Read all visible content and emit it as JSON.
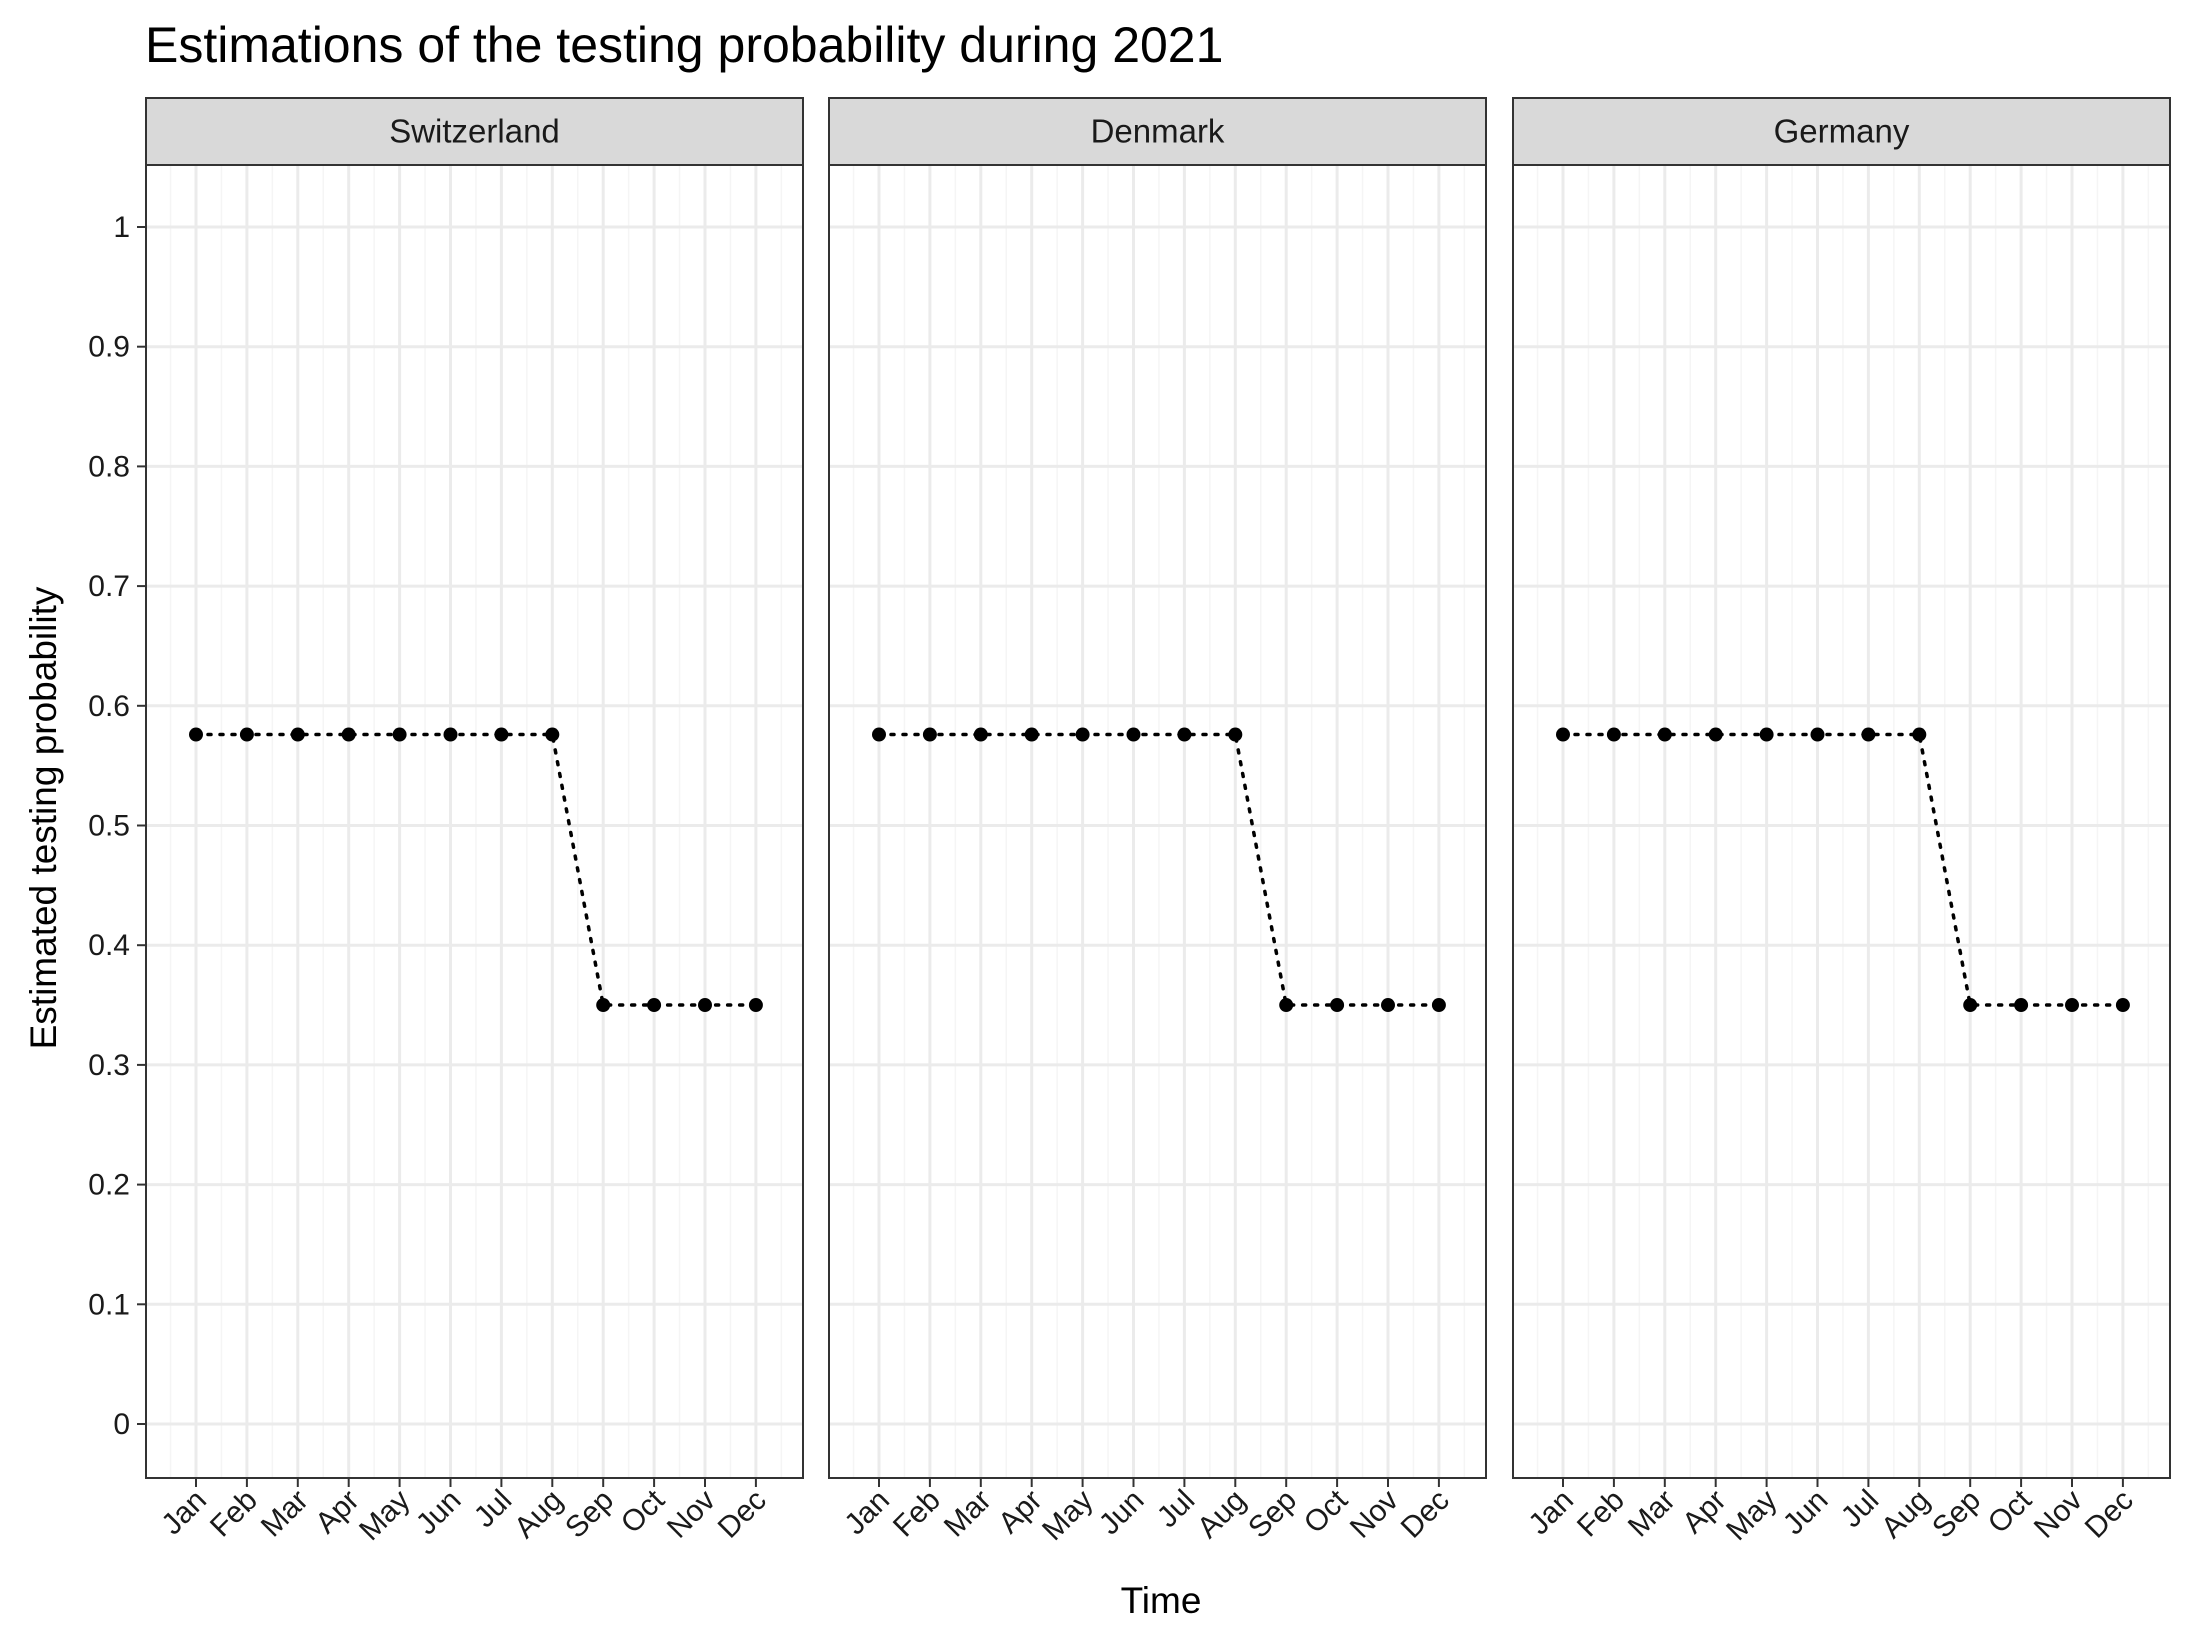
{
  "chart_data": {
    "type": "line",
    "title": "Estimations of the testing probability during 2021",
    "xlabel": "Time",
    "ylabel": "Estimated testing probability",
    "ylim": [
      -0.05,
      1.05
    ],
    "yticks": [
      "0",
      "0.1",
      "0.2",
      "0.3",
      "0.4",
      "0.5",
      "0.6",
      "0.7",
      "0.8",
      "0.9",
      "1"
    ],
    "ytick_values": [
      0,
      0.1,
      0.2,
      0.3,
      0.4,
      0.5,
      0.6,
      0.7,
      0.8,
      0.9,
      1
    ],
    "categories": [
      "Jan",
      "Feb",
      "Mar",
      "Apr",
      "May",
      "Jun",
      "Jul",
      "Aug",
      "Sep",
      "Oct",
      "Nov",
      "Dec"
    ],
    "line_style": "dotted",
    "grid": true,
    "facets": [
      {
        "name": "Switzerland",
        "values": [
          0.576,
          0.576,
          0.576,
          0.576,
          0.576,
          0.576,
          0.576,
          0.576,
          0.35,
          0.35,
          0.35,
          0.35
        ]
      },
      {
        "name": "Denmark",
        "values": [
          0.576,
          0.576,
          0.576,
          0.576,
          0.576,
          0.576,
          0.576,
          0.576,
          0.35,
          0.35,
          0.35,
          0.35
        ]
      },
      {
        "name": "Germany",
        "values": [
          0.576,
          0.576,
          0.576,
          0.576,
          0.576,
          0.576,
          0.576,
          0.576,
          0.35,
          0.35,
          0.35,
          0.35
        ]
      }
    ],
    "colors": {
      "strip_fill": "#d9d9d9",
      "panel_border": "#333333",
      "grid_major": "#ebebeb",
      "grid_minor": "#f5f5f5",
      "series": "#000000"
    }
  }
}
